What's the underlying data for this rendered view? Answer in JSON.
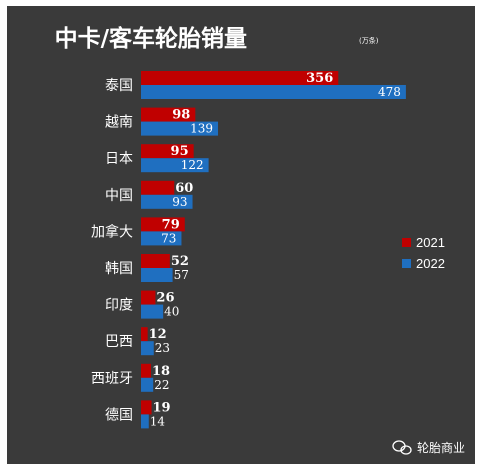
{
  "chart_data": {
    "type": "bar",
    "orientation": "horizontal",
    "title": "中卡/客车轮胎销量",
    "unit": "(万条)",
    "categories": [
      "泰国",
      "越南",
      "日本",
      "中国",
      "加拿大",
      "韩国",
      "印度",
      "巴西",
      "西班牙",
      "德国"
    ],
    "series": [
      {
        "name": "2021",
        "values": [
          356,
          98,
          95,
          60,
          79,
          52,
          26,
          12,
          18,
          19
        ],
        "color": "#c00000"
      },
      {
        "name": "2022",
        "values": [
          478,
          139,
          122,
          93,
          73,
          57,
          40,
          23,
          22,
          14
        ],
        "color": "#1f6fc0"
      }
    ],
    "xlim": [
      0,
      480
    ],
    "grid": false,
    "legend_position": "right",
    "background": "#3a3a3a"
  },
  "watermark": {
    "text": "轮胎商业",
    "icon": "wechat-icon"
  }
}
